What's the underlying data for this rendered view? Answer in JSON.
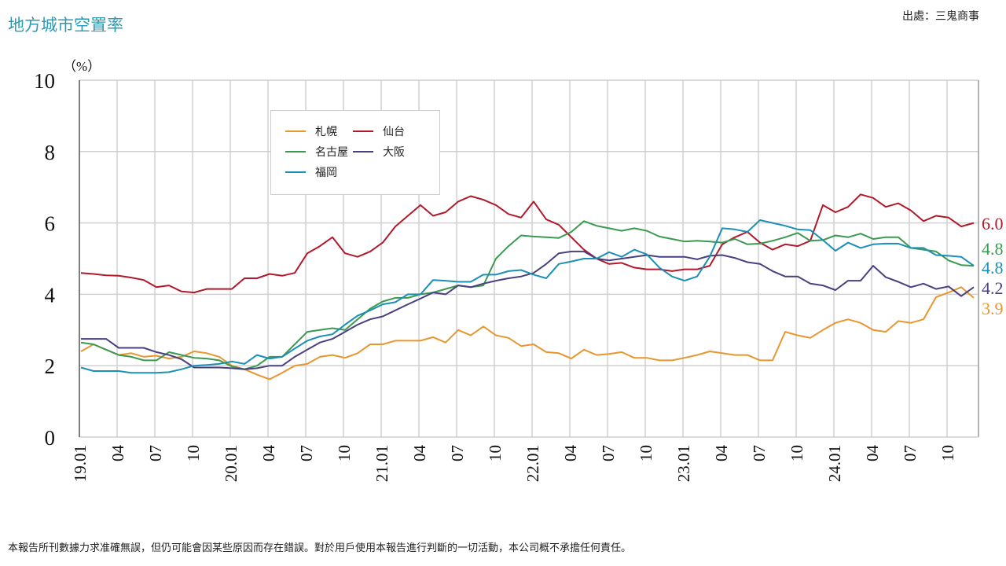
{
  "header": {
    "title": "地方城市空置率",
    "source": "出處：三鬼商事"
  },
  "footer": {
    "disclaimer": "本報告所刊數據力求准確無誤，但仍可能會因某些原因而存在錯誤。對於用戶使用本報告進行判斷的一切活動，本公司概不承擔任何責任。"
  },
  "chart_data": {
    "type": "line",
    "title": "地方城市空置率",
    "ylabel": "（%）",
    "ylim": [
      0,
      10
    ],
    "yticks": [
      "0",
      "2",
      "4",
      "6",
      "8",
      "10"
    ],
    "x_start": "2019-01",
    "x_end": "2024-12",
    "x_frequency": "monthly",
    "xtick_labels": [
      "19.01",
      "04",
      "07",
      "10",
      "20.01",
      "04",
      "07",
      "10",
      "21.01",
      "04",
      "07",
      "10",
      "22.01",
      "04",
      "07",
      "10",
      "23.01",
      "04",
      "07",
      "10",
      "24.01",
      "04",
      "07",
      "10"
    ],
    "grid": true,
    "legend_placement": "top-center",
    "series": [
      {
        "name": "札幌",
        "color": "#e8962e",
        "end_label": "3.9",
        "values": [
          2.4,
          2.6,
          2.45,
          2.3,
          2.35,
          2.25,
          2.28,
          2.2,
          2.25,
          2.4,
          2.35,
          2.25,
          2.0,
          1.9,
          1.75,
          1.62,
          1.8,
          2.0,
          2.05,
          2.25,
          2.3,
          2.22,
          2.35,
          2.6,
          2.6,
          2.7,
          2.7,
          2.7,
          2.8,
          2.65,
          3.0,
          2.85,
          3.1,
          2.85,
          2.78,
          2.55,
          2.6,
          2.38,
          2.35,
          2.2,
          2.45,
          2.3,
          2.33,
          2.38,
          2.22,
          2.22,
          2.15,
          2.15,
          2.22,
          2.3,
          2.4,
          2.35,
          2.3,
          2.3,
          2.15,
          2.15,
          2.95,
          2.85,
          2.78,
          3.0,
          3.2,
          3.3,
          3.2,
          3.0,
          2.95,
          3.25,
          3.2,
          3.3,
          3.92,
          4.05,
          4.2,
          3.9
        ]
      },
      {
        "name": "仙台",
        "color": "#b0192a",
        "end_label": "6.0",
        "values": [
          4.6,
          4.57,
          4.53,
          4.52,
          4.47,
          4.4,
          4.2,
          4.25,
          4.08,
          4.05,
          4.15,
          4.15,
          4.15,
          4.45,
          4.45,
          4.57,
          4.52,
          4.6,
          5.15,
          5.35,
          5.6,
          5.15,
          5.05,
          5.2,
          5.45,
          5.9,
          6.2,
          6.5,
          6.2,
          6.3,
          6.6,
          6.75,
          6.65,
          6.5,
          6.25,
          6.15,
          6.6,
          6.1,
          5.95,
          5.6,
          5.25,
          5.0,
          4.85,
          4.88,
          4.75,
          4.7,
          4.7,
          4.65,
          4.7,
          4.7,
          4.8,
          5.4,
          5.6,
          5.75,
          5.45,
          5.25,
          5.4,
          5.35,
          5.5,
          6.5,
          6.3,
          6.45,
          6.8,
          6.7,
          6.45,
          6.55,
          6.35,
          6.05,
          6.2,
          6.15,
          5.9,
          6.0
        ]
      },
      {
        "name": "名古屋",
        "color": "#3a9a4f",
        "end_label": "4.8",
        "values": [
          2.65,
          2.6,
          2.45,
          2.3,
          2.25,
          2.15,
          2.15,
          2.38,
          2.3,
          2.22,
          2.2,
          2.15,
          1.98,
          1.9,
          2.0,
          2.25,
          2.25,
          2.6,
          2.95,
          3.0,
          3.05,
          3.0,
          3.3,
          3.6,
          3.8,
          3.9,
          3.9,
          4.0,
          4.05,
          4.15,
          4.25,
          4.2,
          4.25,
          5.0,
          5.35,
          5.65,
          5.62,
          5.6,
          5.58,
          5.75,
          6.05,
          5.92,
          5.85,
          5.78,
          5.85,
          5.78,
          5.62,
          5.55,
          5.48,
          5.5,
          5.48,
          5.45,
          5.55,
          5.4,
          5.42,
          5.5,
          5.6,
          5.72,
          5.5,
          5.52,
          5.65,
          5.6,
          5.7,
          5.55,
          5.6,
          5.6,
          5.3,
          5.25,
          5.2,
          4.95,
          4.82,
          4.8
        ]
      },
      {
        "name": "大阪",
        "color": "#4a3f7f",
        "end_label": "4.2",
        "values": [
          2.75,
          2.75,
          2.75,
          2.5,
          2.5,
          2.5,
          2.38,
          2.3,
          2.18,
          1.95,
          1.95,
          1.95,
          1.93,
          1.9,
          1.93,
          2.0,
          2.0,
          2.25,
          2.45,
          2.65,
          2.75,
          2.95,
          3.15,
          3.3,
          3.38,
          3.55,
          3.72,
          3.88,
          4.05,
          4.0,
          4.25,
          4.2,
          4.3,
          4.38,
          4.45,
          4.5,
          4.6,
          4.85,
          5.15,
          5.2,
          5.2,
          5.0,
          4.95,
          5.0,
          5.05,
          5.1,
          5.05,
          5.05,
          5.05,
          4.98,
          5.08,
          5.1,
          5.02,
          4.9,
          4.85,
          4.65,
          4.5,
          4.5,
          4.3,
          4.25,
          4.12,
          4.38,
          4.38,
          4.8,
          4.48,
          4.35,
          4.2,
          4.3,
          4.15,
          4.22,
          3.95,
          4.2
        ]
      },
      {
        "name": "福岡",
        "color": "#1b8fb5",
        "end_label": "4.8",
        "values": [
          1.95,
          1.85,
          1.85,
          1.85,
          1.8,
          1.8,
          1.8,
          1.82,
          1.9,
          2.0,
          2.02,
          2.05,
          2.12,
          2.05,
          2.3,
          2.2,
          2.25,
          2.48,
          2.7,
          2.82,
          2.88,
          3.15,
          3.4,
          3.55,
          3.72,
          3.78,
          4.0,
          4.0,
          4.4,
          4.38,
          4.35,
          4.35,
          4.55,
          4.55,
          4.65,
          4.68,
          4.55,
          4.45,
          4.85,
          4.92,
          5.0,
          5.0,
          5.18,
          5.05,
          5.25,
          5.12,
          4.75,
          4.5,
          4.38,
          4.5,
          5.05,
          5.85,
          5.82,
          5.75,
          6.08,
          6.0,
          5.92,
          5.82,
          5.8,
          5.52,
          5.22,
          5.45,
          5.3,
          5.4,
          5.42,
          5.42,
          5.3,
          5.3,
          5.1,
          5.08,
          5.05,
          4.8
        ]
      }
    ]
  }
}
